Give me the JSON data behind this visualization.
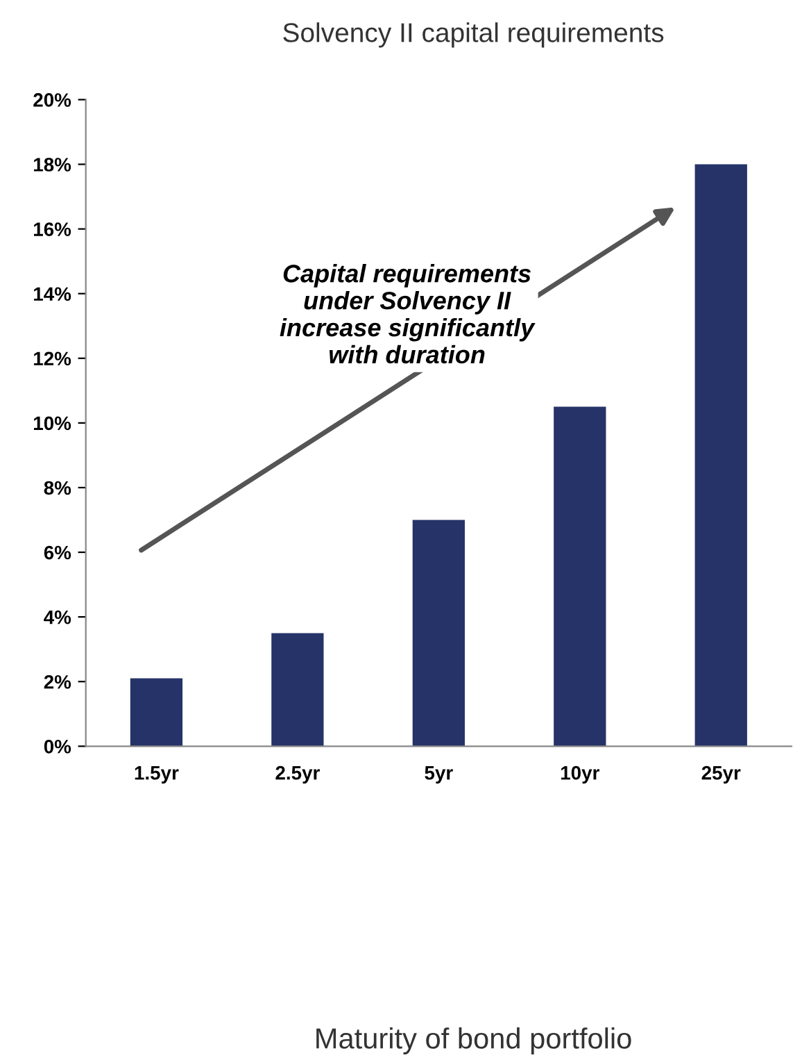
{
  "chart_data": {
    "type": "bar",
    "title": "Solvency II capital requirements",
    "categories": [
      "1.5yr",
      "2.5yr",
      "5yr",
      "10yr",
      "25yr"
    ],
    "values": [
      2.1,
      3.5,
      7,
      10.5,
      18
    ],
    "color": "#253368",
    "ylim": [
      0,
      20
    ],
    "yticks": [
      {
        "value": 0,
        "label": "0%"
      },
      {
        "value": 2,
        "label": "2%"
      },
      {
        "value": 4,
        "label": "4%"
      },
      {
        "value": 6,
        "label": "6%"
      },
      {
        "value": 8,
        "label": "8%"
      },
      {
        "value": 10,
        "label": "10%"
      },
      {
        "value": 12,
        "label": "12%"
      },
      {
        "value": 14,
        "label": "14%"
      },
      {
        "value": 16,
        "label": "16%"
      },
      {
        "value": 18,
        "label": "18%"
      },
      {
        "value": 20,
        "label": "20%"
      }
    ],
    "annotations": [
      "Capital requirements\nunder Solvency II\nincrease significantly\nwith duration",
      "Maturity of bond portfolio"
    ],
    "grid": false,
    "legend": false
  }
}
